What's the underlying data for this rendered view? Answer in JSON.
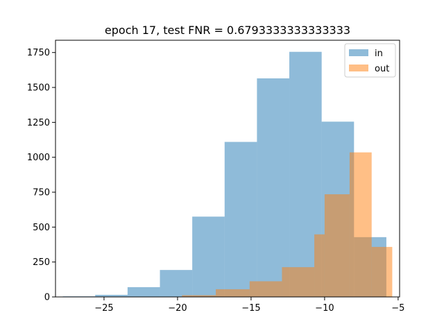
{
  "chart_data": {
    "type": "histogram",
    "title": "epoch 17, test FNR = 0.6793333333333333",
    "xlabel": "",
    "ylabel": "",
    "xlim": [
      -28.3,
      -4.9
    ],
    "ylim": [
      0,
      1838
    ],
    "xticks": [
      -25,
      -20,
      -15,
      -10,
      -5
    ],
    "xtick_labels": [
      "−25",
      "−20",
      "−15",
      "−10",
      "−5"
    ],
    "yticks": [
      0,
      250,
      500,
      750,
      1000,
      1250,
      1500,
      1750
    ],
    "ytick_labels": [
      "0",
      "250",
      "500",
      "750",
      "1000",
      "1250",
      "1500",
      "1750"
    ],
    "grid": false,
    "legend": "upper right",
    "series": [
      {
        "name": "in",
        "color": "#1f77b4",
        "alpha": 0.5,
        "bins": [
          {
            "x0": -27.8,
            "x1": -25.6,
            "value": 4
          },
          {
            "x0": -25.6,
            "x1": -23.4,
            "value": 15
          },
          {
            "x0": -23.4,
            "x1": -21.2,
            "value": 70
          },
          {
            "x0": -21.2,
            "x1": -19.0,
            "value": 193
          },
          {
            "x0": -19.0,
            "x1": -16.8,
            "value": 575
          },
          {
            "x0": -16.8,
            "x1": -14.6,
            "value": 1110
          },
          {
            "x0": -14.6,
            "x1": -12.4,
            "value": 1565
          },
          {
            "x0": -12.4,
            "x1": -10.2,
            "value": 1755
          },
          {
            "x0": -10.2,
            "x1": -8.0,
            "value": 1255
          },
          {
            "x0": -8.0,
            "x1": -5.8,
            "value": 428
          }
        ]
      },
      {
        "name": "out",
        "color": "#ff7f0e",
        "alpha": 0.5,
        "bins": [
          {
            "x0": -21.9,
            "x1": -19.7,
            "value": 2
          },
          {
            "x0": -19.7,
            "x1": -17.4,
            "value": 12
          },
          {
            "x0": -17.4,
            "x1": -15.1,
            "value": 55
          },
          {
            "x0": -15.1,
            "x1": -12.9,
            "value": 112
          },
          {
            "x0": -12.9,
            "x1": -10.7,
            "value": 213
          },
          {
            "x0": -10.7,
            "x1": -10.0,
            "value": 448
          },
          {
            "x0": -10.0,
            "x1": -8.3,
            "value": 735
          },
          {
            "x0": -8.3,
            "x1": -6.8,
            "value": 1035
          },
          {
            "x0": -6.8,
            "x1": -5.4,
            "value": 358
          }
        ]
      }
    ]
  }
}
